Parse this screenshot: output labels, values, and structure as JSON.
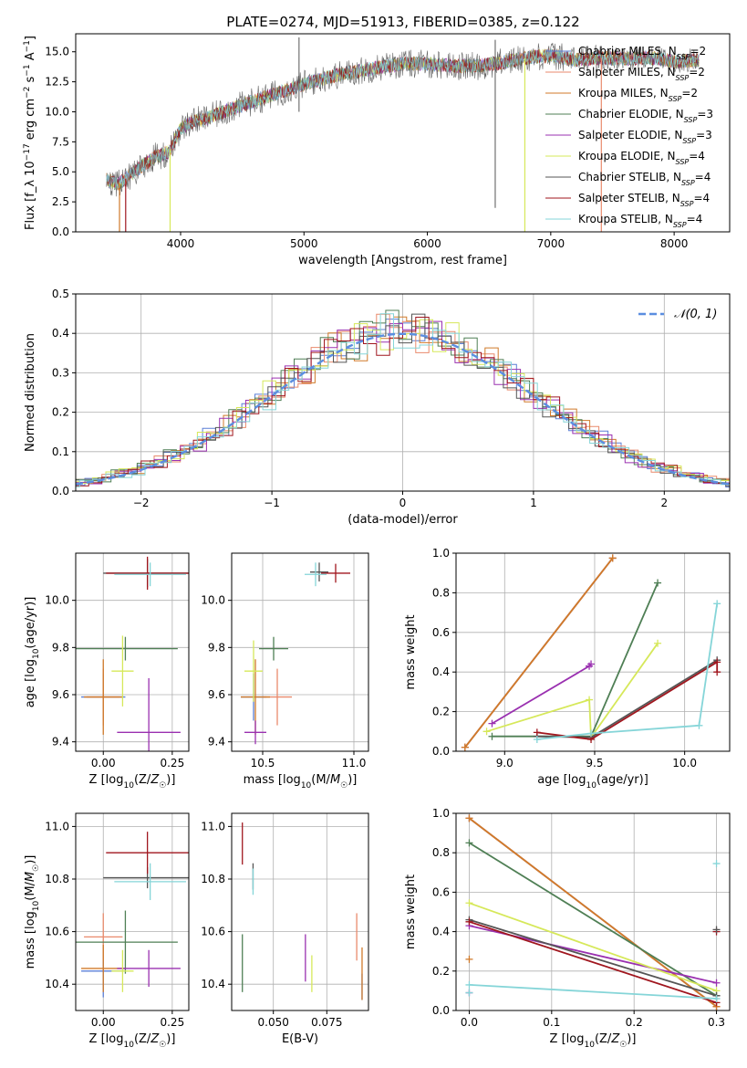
{
  "figure": {
    "title": "PLATE=0274, MJD=51913, FIBERID=0385, z=0.122"
  },
  "colors": {
    "chabrier_miles": "#5b7fd6",
    "salpeter_miles": "#e98a6c",
    "kroupa_miles": "#d07a2a",
    "chabrier_elodie": "#4f7f55",
    "salpeter_elodie": "#9a30b0",
    "kroupa_elodie": "#d6e85a",
    "chabrier_stelib": "#555555",
    "salpeter_stelib": "#a0161e",
    "kroupa_stelib": "#85d5d8",
    "normal": "#5b8ee0"
  },
  "chart_data": [
    {
      "id": "spectrum",
      "type": "line",
      "xlabel": "wavelength [Angstrom, rest frame]",
      "ylabel": "Flux [f_λ 10^-17 erg cm^-2 s^-1 A^-1]",
      "xlim": [
        3150,
        8450
      ],
      "ylim": [
        0,
        16.5
      ],
      "xticks": [
        4000,
        5000,
        6000,
        7000,
        8000
      ],
      "yticks": [
        0.0,
        2.5,
        5.0,
        7.5,
        10.0,
        12.5,
        15.0
      ],
      "grid": false,
      "legend_position": "right",
      "continuum": {
        "x": [
          3400,
          3500,
          3600,
          3700,
          3800,
          3900,
          4000,
          4100,
          4200,
          4400,
          4600,
          4800,
          5000,
          5200,
          5400,
          5600,
          5800,
          6000,
          6200,
          6400,
          6600,
          6800,
          7000,
          7200,
          7400,
          7600,
          7800,
          8000,
          8200
        ],
        "y": [
          4.3,
          4.0,
          4.8,
          5.6,
          6.3,
          6.6,
          8.6,
          9.2,
          9.4,
          10.2,
          10.9,
          11.6,
          12.3,
          12.9,
          13.3,
          13.7,
          14.0,
          14.0,
          13.8,
          13.8,
          14.1,
          14.5,
          14.7,
          14.3,
          14.5,
          14.4,
          14.5,
          14.2,
          14.3
        ]
      },
      "series": [
        {
          "name": "Chabrier MILES, N_SSP=2",
          "color_key": "chabrier_miles"
        },
        {
          "name": "Salpeter MILES, N_SSP=2",
          "color_key": "salpeter_miles"
        },
        {
          "name": "Kroupa MILES, N_SSP=2",
          "color_key": "kroupa_miles"
        },
        {
          "name": "Chabrier ELODIE, N_SSP=3",
          "color_key": "chabrier_elodie"
        },
        {
          "name": "Salpeter ELODIE, N_SSP=3",
          "color_key": "salpeter_elodie"
        },
        {
          "name": "Kroupa ELODIE, N_SSP=4",
          "color_key": "kroupa_elodie"
        },
        {
          "name": "Chabrier STELIB, N_SSP=4",
          "color_key": "chabrier_stelib"
        },
        {
          "name": "Salpeter STELIB, N_SSP=4",
          "color_key": "salpeter_stelib"
        },
        {
          "name": "Kroupa STELIB, N_SSP=4",
          "color_key": "kroupa_stelib"
        }
      ]
    },
    {
      "id": "residuals",
      "type": "line",
      "xlabel": "(data-model)/error",
      "ylabel": "Normed distribution",
      "xlim": [
        -2.5,
        2.5
      ],
      "ylim": [
        0,
        0.5
      ],
      "xticks": [
        -2,
        -1,
        0,
        1,
        2
      ],
      "yticks": [
        0.0,
        0.1,
        0.2,
        0.3,
        0.4,
        0.5
      ],
      "grid": true,
      "legend_position": "top-right",
      "normal_label": "𝒩(0, 1)",
      "bin_width": 0.1
    },
    {
      "id": "age_vs_Z",
      "type": "scatter",
      "xlabel": "Z [log10(Z/Z☉)]",
      "ylabel": "age  [log10(age/yr)]",
      "xlim": [
        -0.1,
        0.31
      ],
      "ylim": [
        9.36,
        10.2
      ],
      "xticks": [
        0.0,
        0.25
      ],
      "yticks": [
        9.4,
        9.6,
        9.8,
        10.0
      ],
      "grid": true,
      "points": [
        {
          "color_key": "chabrier_miles",
          "x": 0.0,
          "y": 9.59,
          "xerr": 0.08,
          "yerr": 0.1
        },
        {
          "color_key": "salpeter_miles",
          "x": 0.0,
          "y": 9.59,
          "xerr": 0.06,
          "yerr": 0.12
        },
        {
          "color_key": "kroupa_miles",
          "x": 0.0,
          "y": 9.59,
          "xerr": 0.07,
          "yerr": 0.16
        },
        {
          "color_key": "chabrier_elodie",
          "x": 0.08,
          "y": 9.795,
          "xerr": 0.19,
          "yerr": 0.05
        },
        {
          "color_key": "salpeter_elodie",
          "x": 0.165,
          "y": 9.44,
          "xerr": 0.115,
          "yerr": 0.23
        },
        {
          "color_key": "kroupa_elodie",
          "x": 0.07,
          "y": 9.7,
          "xerr": 0.04,
          "yerr": 0.15
        },
        {
          "color_key": "chabrier_stelib",
          "x": 0.16,
          "y": 10.115,
          "xerr": 0.16,
          "yerr": 0.06
        },
        {
          "color_key": "salpeter_stelib",
          "x": 0.16,
          "y": 10.115,
          "xerr": 0.15,
          "yerr": 0.07
        },
        {
          "color_key": "kroupa_stelib",
          "x": 0.17,
          "y": 10.11,
          "xerr": 0.13,
          "yerr": 0.05
        }
      ]
    },
    {
      "id": "age_vs_mass",
      "type": "scatter",
      "xlabel": "mass [log10(M/M☉)]",
      "ylabel": "",
      "xlim": [
        10.33,
        11.08
      ],
      "ylim": [
        9.36,
        10.2
      ],
      "xticks": [
        10.5,
        11.0
      ],
      "yticks": [
        9.4,
        9.6,
        9.8,
        10.0
      ],
      "grid": true,
      "points": [
        {
          "color_key": "chabrier_miles",
          "x": 10.45,
          "y": 9.59,
          "xerr": 0.07,
          "yerr": 0.1
        },
        {
          "color_key": "salpeter_miles",
          "x": 10.58,
          "y": 9.59,
          "xerr": 0.08,
          "yerr": 0.12
        },
        {
          "color_key": "kroupa_miles",
          "x": 10.46,
          "y": 9.59,
          "xerr": 0.08,
          "yerr": 0.16
        },
        {
          "color_key": "chabrier_elodie",
          "x": 10.56,
          "y": 9.795,
          "xerr": 0.08,
          "yerr": 0.05
        },
        {
          "color_key": "salpeter_elodie",
          "x": 10.46,
          "y": 9.44,
          "xerr": 0.06,
          "yerr": 0.05
        },
        {
          "color_key": "kroupa_elodie",
          "x": 10.45,
          "y": 9.7,
          "xerr": 0.05,
          "yerr": 0.13
        },
        {
          "color_key": "chabrier_stelib",
          "x": 10.81,
          "y": 10.12,
          "xerr": 0.05,
          "yerr": 0.04
        },
        {
          "color_key": "salpeter_stelib",
          "x": 10.9,
          "y": 10.115,
          "xerr": 0.08,
          "yerr": 0.04
        },
        {
          "color_key": "kroupa_stelib",
          "x": 10.79,
          "y": 10.11,
          "xerr": 0.06,
          "yerr": 0.05
        }
      ]
    },
    {
      "id": "weight_vs_age",
      "type": "line",
      "xlabel": "age  [log10(age/yr)]",
      "ylabel": "mass weight",
      "xlim": [
        8.73,
        10.25
      ],
      "ylim": [
        0,
        1.0
      ],
      "xticks": [
        9.0,
        9.5,
        10.0
      ],
      "yticks": [
        0.0,
        0.2,
        0.4,
        0.6,
        0.8,
        1.0
      ],
      "grid": true,
      "series": [
        {
          "color_key": "chabrier_miles",
          "x": [
            8.78,
            9.6
          ],
          "y": [
            0.02,
            0.975
          ]
        },
        {
          "color_key": "salpeter_miles",
          "x": [
            8.78,
            9.6
          ],
          "y": [
            0.02,
            0.975
          ]
        },
        {
          "color_key": "kroupa_miles",
          "x": [
            8.78,
            9.6
          ],
          "y": [
            0.02,
            0.975
          ]
        },
        {
          "color_key": "chabrier_elodie",
          "x": [
            8.93,
            9.48,
            9.85
          ],
          "y": [
            0.075,
            0.075,
            0.85
          ]
        },
        {
          "color_key": "salpeter_elodie",
          "x": [
            8.93,
            9.47,
            9.48
          ],
          "y": [
            0.14,
            0.43,
            0.44
          ]
        },
        {
          "color_key": "kroupa_elodie",
          "x": [
            8.9,
            9.47,
            9.48,
            9.85
          ],
          "y": [
            0.1,
            0.26,
            0.07,
            0.545
          ]
        },
        {
          "color_key": "chabrier_stelib",
          "x": [
            9.18,
            9.48,
            10.18
          ],
          "y": [
            0.075,
            0.07,
            0.46
          ]
        },
        {
          "color_key": "salpeter_stelib",
          "x": [
            9.18,
            9.48,
            10.18,
            10.18
          ],
          "y": [
            0.095,
            0.06,
            0.45,
            0.4
          ]
        },
        {
          "color_key": "kroupa_stelib",
          "x": [
            9.18,
            9.48,
            10.08,
            10.18
          ],
          "y": [
            0.06,
            0.09,
            0.13,
            0.745
          ]
        }
      ]
    },
    {
      "id": "mass_vs_Z",
      "type": "scatter",
      "xlabel": "Z [log10(Z/Z☉)]",
      "ylabel": "mass [log10(M/M☉)]",
      "xlim": [
        -0.1,
        0.31
      ],
      "ylim": [
        10.3,
        11.05
      ],
      "xticks": [
        0.0,
        0.25
      ],
      "yticks": [
        10.4,
        10.6,
        10.8,
        11.0
      ],
      "grid": true,
      "points": [
        {
          "color_key": "chabrier_miles",
          "x": 0.0,
          "y": 10.45,
          "xerr": 0.08,
          "yerr": 0.1
        },
        {
          "color_key": "salpeter_miles",
          "x": 0.0,
          "y": 10.58,
          "xerr": 0.07,
          "yerr": 0.09
        },
        {
          "color_key": "kroupa_miles",
          "x": 0.0,
          "y": 10.46,
          "xerr": 0.08,
          "yerr": 0.09
        },
        {
          "color_key": "chabrier_elodie",
          "x": 0.08,
          "y": 10.56,
          "xerr": 0.19,
          "yerr": 0.12
        },
        {
          "color_key": "salpeter_elodie",
          "x": 0.165,
          "y": 10.46,
          "xerr": 0.115,
          "yerr": 0.07
        },
        {
          "color_key": "kroupa_elodie",
          "x": 0.07,
          "y": 10.45,
          "xerr": 0.04,
          "yerr": 0.08
        },
        {
          "color_key": "chabrier_stelib",
          "x": 0.16,
          "y": 10.805,
          "xerr": 0.16,
          "yerr": 0.04
        },
        {
          "color_key": "salpeter_stelib",
          "x": 0.16,
          "y": 10.9,
          "xerr": 0.15,
          "yerr": 0.08
        },
        {
          "color_key": "kroupa_stelib",
          "x": 0.17,
          "y": 10.79,
          "xerr": 0.13,
          "yerr": 0.07
        }
      ]
    },
    {
      "id": "mass_vs_ebv",
      "type": "scatter",
      "xlabel": "E(B-V)",
      "ylabel": "",
      "xlim": [
        0.0305,
        0.0945
      ],
      "ylim": [
        10.3,
        11.05
      ],
      "xticks": [
        0.05,
        0.075
      ],
      "yticks": [
        10.4,
        10.6,
        10.8,
        11.0
      ],
      "grid": true,
      "points": [
        {
          "color_key": "chabrier_miles",
          "x": 0.0915,
          "y": 10.39,
          "xerr": 0,
          "yerr": 0.05
        },
        {
          "color_key": "salpeter_miles",
          "x": 0.089,
          "y": 10.58,
          "xerr": 0,
          "yerr": 0.09
        },
        {
          "color_key": "kroupa_miles",
          "x": 0.0915,
          "y": 10.44,
          "xerr": 0,
          "yerr": 0.1
        },
        {
          "color_key": "chabrier_elodie",
          "x": 0.0355,
          "y": 10.48,
          "xerr": 0,
          "yerr": 0.11
        },
        {
          "color_key": "salpeter_elodie",
          "x": 0.065,
          "y": 10.5,
          "xerr": 0,
          "yerr": 0.09
        },
        {
          "color_key": "kroupa_elodie",
          "x": 0.068,
          "y": 10.44,
          "xerr": 0,
          "yerr": 0.07
        },
        {
          "color_key": "chabrier_stelib",
          "x": 0.0405,
          "y": 10.81,
          "xerr": 0,
          "yerr": 0.05
        },
        {
          "color_key": "salpeter_stelib",
          "x": 0.0355,
          "y": 10.935,
          "xerr": 0,
          "yerr": 0.08
        },
        {
          "color_key": "kroupa_stelib",
          "x": 0.0405,
          "y": 10.79,
          "xerr": 0,
          "yerr": 0.05
        }
      ]
    },
    {
      "id": "weight_vs_Z",
      "type": "line",
      "xlabel": "Z [log10(Z/Z☉)]",
      "ylabel": "mass weight",
      "xlim": [
        -0.016,
        0.316
      ],
      "ylim": [
        0,
        1.0
      ],
      "xticks": [
        0.0,
        0.1,
        0.2,
        0.3
      ],
      "yticks": [
        0.0,
        0.2,
        0.4,
        0.6,
        0.8,
        1.0
      ],
      "grid": true,
      "series": [
        {
          "color_key": "chabrier_miles",
          "x": [
            0.0,
            0.3
          ],
          "y": [
            0.975,
            0.02
          ]
        },
        {
          "color_key": "salpeter_miles",
          "x": [
            0.0,
            0.3
          ],
          "y": [
            0.975,
            0.02
          ]
        },
        {
          "color_key": "kroupa_miles",
          "x": [
            0.0,
            0.3
          ],
          "y": [
            0.975,
            0.02
          ]
        },
        {
          "color_key": "chabrier_elodie",
          "x": [
            0.0,
            0.3
          ],
          "y": [
            0.85,
            0.075
          ]
        },
        {
          "color_key": "salpeter_elodie",
          "x": [
            0.0,
            0.3
          ],
          "y": [
            0.43,
            0.14
          ]
        },
        {
          "color_key": "kroupa_elodie",
          "x": [
            0.0,
            0.3
          ],
          "y": [
            0.545,
            0.1
          ]
        },
        {
          "color_key": "chabrier_stelib",
          "x": [
            0.0,
            0.3
          ],
          "y": [
            0.46,
            0.075
          ]
        },
        {
          "color_key": "salpeter_stelib",
          "x": [
            0.0,
            0.3
          ],
          "y": [
            0.45,
            0.04
          ]
        },
        {
          "color_key": "kroupa_stelib",
          "x": [
            0.0,
            0.3
          ],
          "y": [
            0.13,
            0.06
          ]
        }
      ],
      "markers": [
        {
          "color_key": "kroupa_stelib",
          "x": 0.3,
          "y": 0.745
        },
        {
          "color_key": "salpeter_stelib",
          "x": 0.3,
          "y": 0.4
        },
        {
          "color_key": "chabrier_stelib",
          "x": 0.3,
          "y": 0.41
        },
        {
          "color_key": "kroupa_miles",
          "x": 0.0,
          "y": 0.26
        },
        {
          "color_key": "salpeter_elodie",
          "x": 0.0,
          "y": 0.09
        },
        {
          "color_key": "kroupa_stelib",
          "x": 0.0,
          "y": 0.09
        }
      ]
    }
  ]
}
